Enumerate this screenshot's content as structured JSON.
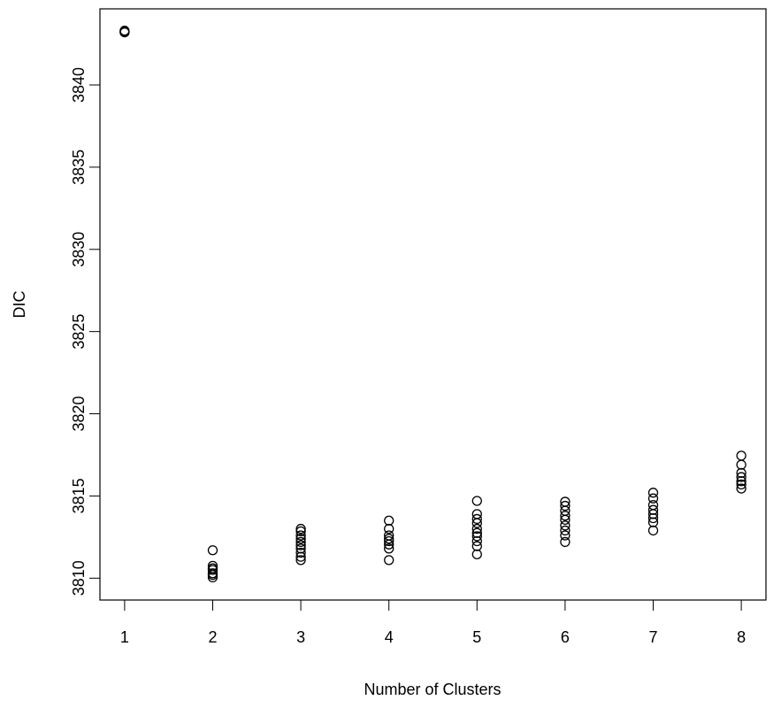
{
  "chart_data": {
    "type": "scatter",
    "x_label": "Number of Clusters",
    "y_label": "DIC",
    "x": [
      1,
      1,
      1,
      2,
      2,
      2,
      2,
      2,
      2,
      2,
      3,
      3,
      3,
      3,
      3,
      3,
      3,
      3,
      3,
      3,
      4,
      4,
      4,
      4,
      4,
      4,
      4,
      4,
      5,
      5,
      5,
      5,
      5,
      5,
      5,
      5,
      5,
      5,
      6,
      6,
      6,
      6,
      6,
      6,
      6,
      6,
      6,
      7,
      7,
      7,
      7,
      7,
      7,
      7,
      7,
      8,
      8,
      8,
      8,
      8,
      8,
      8
    ],
    "y": [
      3843.3,
      3843.2,
      3843.25,
      3811.7,
      3810.75,
      3810.6,
      3810.5,
      3810.3,
      3810.2,
      3810.05,
      3813.0,
      3812.85,
      3812.6,
      3812.4,
      3812.2,
      3812.0,
      3811.8,
      3811.55,
      3811.3,
      3811.1,
      3813.5,
      3813.0,
      3812.6,
      3812.4,
      3812.25,
      3812.05,
      3811.8,
      3811.1,
      3814.7,
      3813.9,
      3813.6,
      3813.35,
      3813.0,
      3812.75,
      3812.55,
      3812.25,
      3811.95,
      3811.45,
      3814.65,
      3814.4,
      3814.1,
      3813.8,
      3813.55,
      3813.2,
      3812.9,
      3812.6,
      3812.2,
      3815.2,
      3814.85,
      3814.45,
      3814.15,
      3813.9,
      3813.65,
      3813.4,
      3812.9,
      3817.45,
      3816.9,
      3816.4,
      3816.15,
      3815.9,
      3815.7,
      3815.45
    ],
    "color": "#000000",
    "xlim": [
      0.72,
      8.28
    ],
    "ylim": [
      3808.67,
      3844.63
    ],
    "xticks": [
      1,
      2,
      3,
      4,
      5,
      6,
      7,
      8
    ],
    "yticks": [
      3810,
      3815,
      3820,
      3825,
      3830,
      3835,
      3840
    ]
  }
}
